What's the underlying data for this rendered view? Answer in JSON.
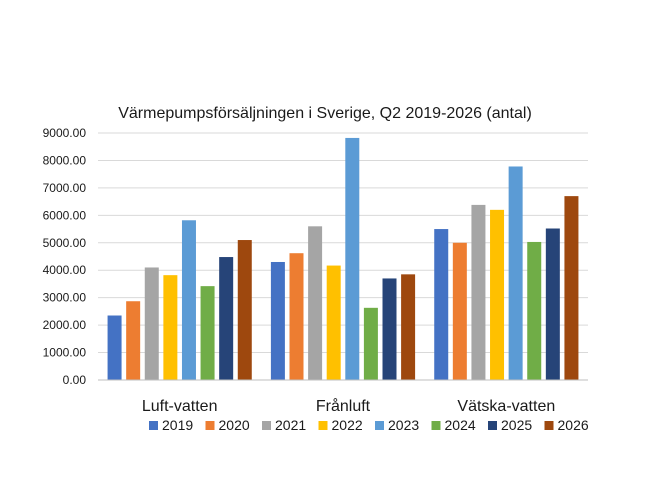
{
  "chart_data": {
    "type": "bar",
    "title": "Värmepumpsförsäljningen i Sverige, Q2 2019-2026 (antal)",
    "categories": [
      "Luft-vatten",
      "Frånluft",
      "Vätska-vatten"
    ],
    "series": [
      {
        "name": "2019",
        "color": "#4472c4",
        "values": [
          2350,
          4300,
          5500
        ]
      },
      {
        "name": "2020",
        "color": "#ed7d31",
        "values": [
          2870,
          4620,
          5000
        ]
      },
      {
        "name": "2021",
        "color": "#a5a5a5",
        "values": [
          4100,
          5600,
          6380
        ]
      },
      {
        "name": "2022",
        "color": "#ffc000",
        "values": [
          3820,
          4170,
          6200
        ]
      },
      {
        "name": "2023",
        "color": "#5b9bd5",
        "values": [
          5820,
          8820,
          7780
        ]
      },
      {
        "name": "2024",
        "color": "#70ad47",
        "values": [
          3420,
          2630,
          5030
        ]
      },
      {
        "name": "2025",
        "color": "#264478",
        "values": [
          4480,
          3700,
          5520
        ]
      },
      {
        "name": "2026",
        "color": "#9e480e",
        "values": [
          5100,
          3850,
          6700
        ]
      }
    ],
    "ylim": [
      0,
      9000
    ],
    "yticks": [
      "0.00",
      "1000.00",
      "2000.00",
      "3000.00",
      "4000.00",
      "5000.00",
      "6000.00",
      "7000.00",
      "8000.00",
      "9000.00"
    ],
    "grid": true,
    "legend_position": "bottom"
  }
}
